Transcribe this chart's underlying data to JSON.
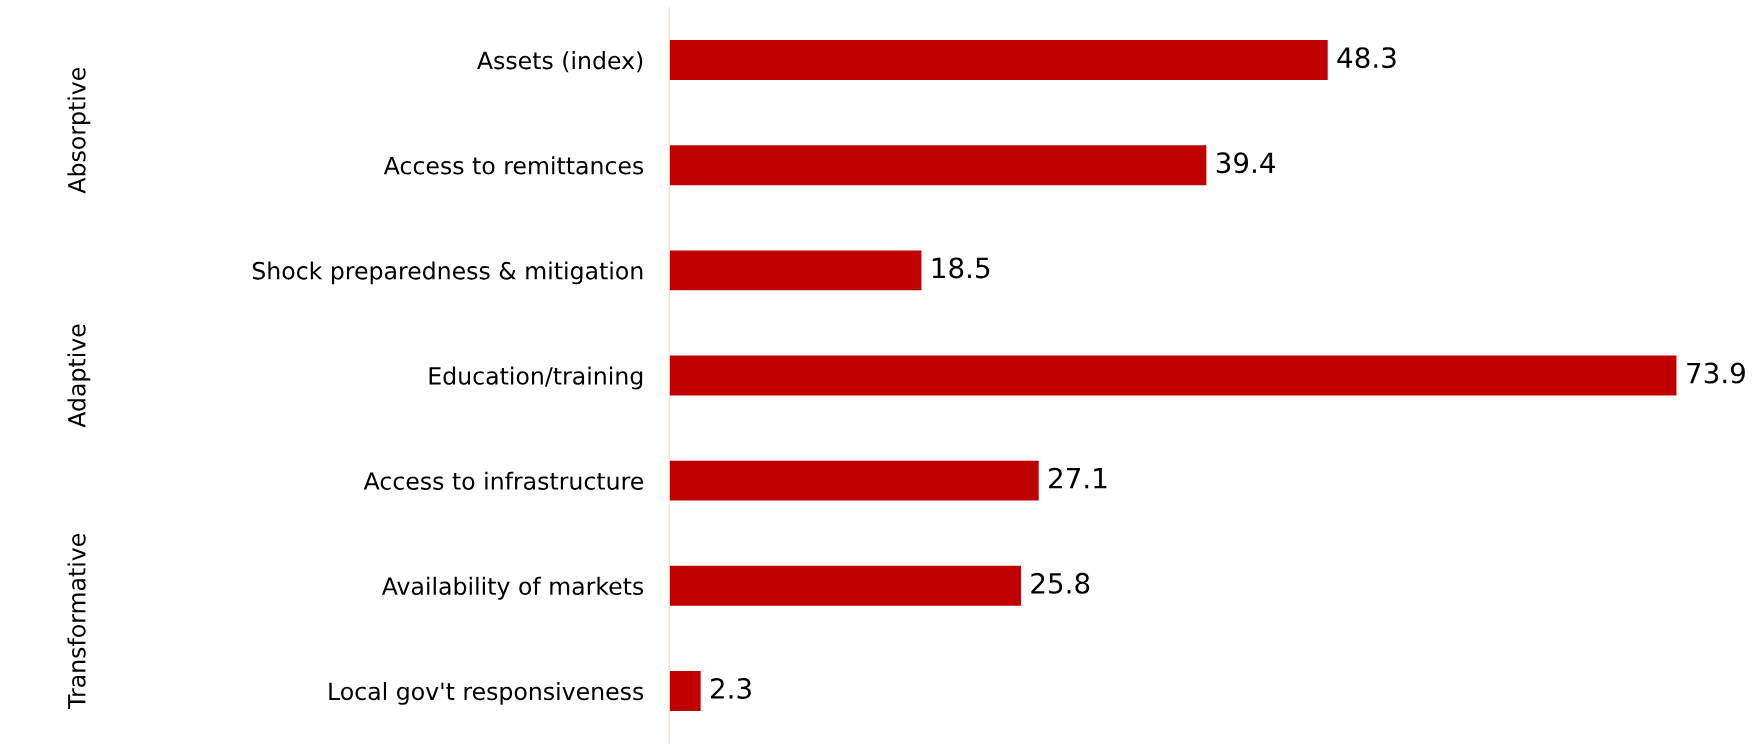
{
  "chart_data": {
    "type": "bar",
    "orientation": "horizontal",
    "categories": [
      "Assets (index)",
      "Access to remittances",
      "Shock preparedness & mitigation",
      "Education/training",
      "Access to infrastructure",
      "Availability of markets",
      "Local gov't responsiveness"
    ],
    "values": [
      48.3,
      39.4,
      18.5,
      73.9,
      27.1,
      25.8,
      2.3
    ],
    "color": "#c00000",
    "data_labels": true,
    "grid": false,
    "legend": false,
    "annotations": [
      "Absorptive",
      "Adaptive",
      "Transformative"
    ]
  }
}
